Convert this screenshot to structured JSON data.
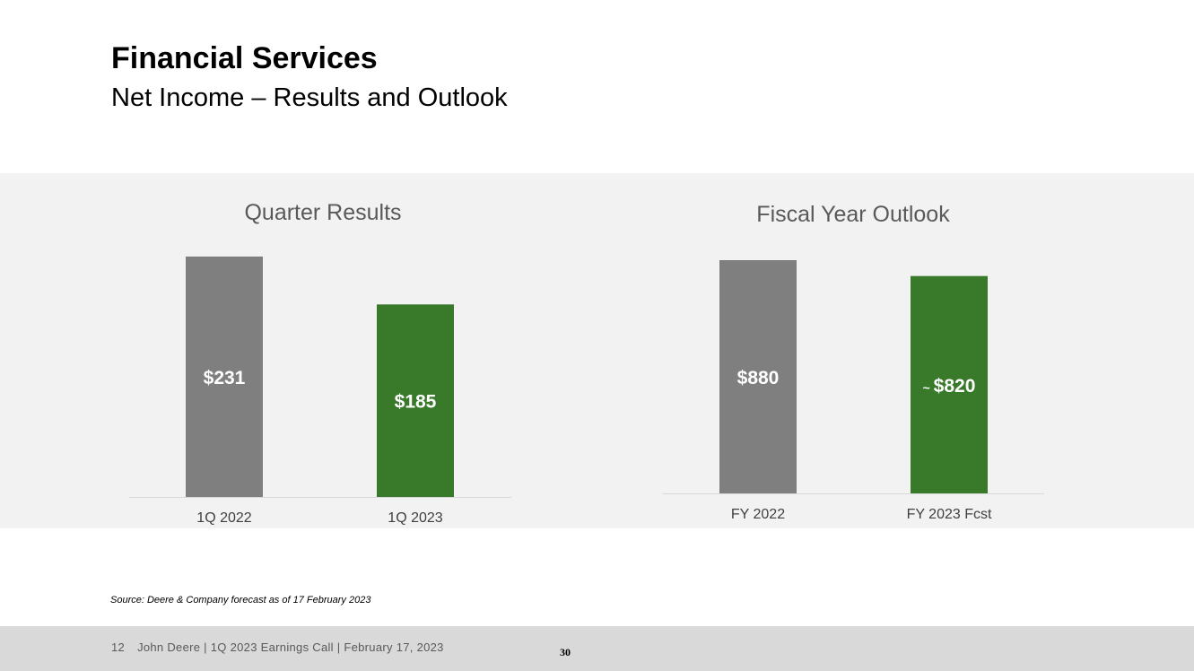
{
  "header": {
    "title": "Financial Services",
    "subtitle": "Net Income – Results and Outlook"
  },
  "colors": {
    "prior": "#7f7f7f",
    "current": "#38792a",
    "baseline": "#d9d9d9"
  },
  "chart_data": [
    {
      "type": "bar",
      "title": "Quarter Results",
      "categories": [
        "1Q 2022",
        "1Q 2023"
      ],
      "values": [
        231,
        185
      ],
      "labels": [
        {
          "prefix": "",
          "text": "$231"
        },
        {
          "prefix": "",
          "text": "$185"
        }
      ],
      "xlabel": "",
      "ylabel": "",
      "ylim": [
        0,
        231
      ],
      "grid": false,
      "legend": "none"
    },
    {
      "type": "bar",
      "title": "Fiscal Year Outlook",
      "categories": [
        "FY 2022",
        "FY 2023 Fcst"
      ],
      "values": [
        880,
        820
      ],
      "labels": [
        {
          "prefix": "",
          "text": "$880"
        },
        {
          "prefix": "~",
          "text": "$820"
        }
      ],
      "xlabel": "",
      "ylabel": "",
      "ylim": [
        0,
        880
      ],
      "grid": false,
      "legend": "none"
    }
  ],
  "footnote": {
    "source": "Source: Deere & Company forecast as of 17 February 2023"
  },
  "footer": {
    "slide_number": "12",
    "text": "John Deere | 1Q 2023 Earnings Call | February 17, 2023",
    "page_number": "30"
  }
}
